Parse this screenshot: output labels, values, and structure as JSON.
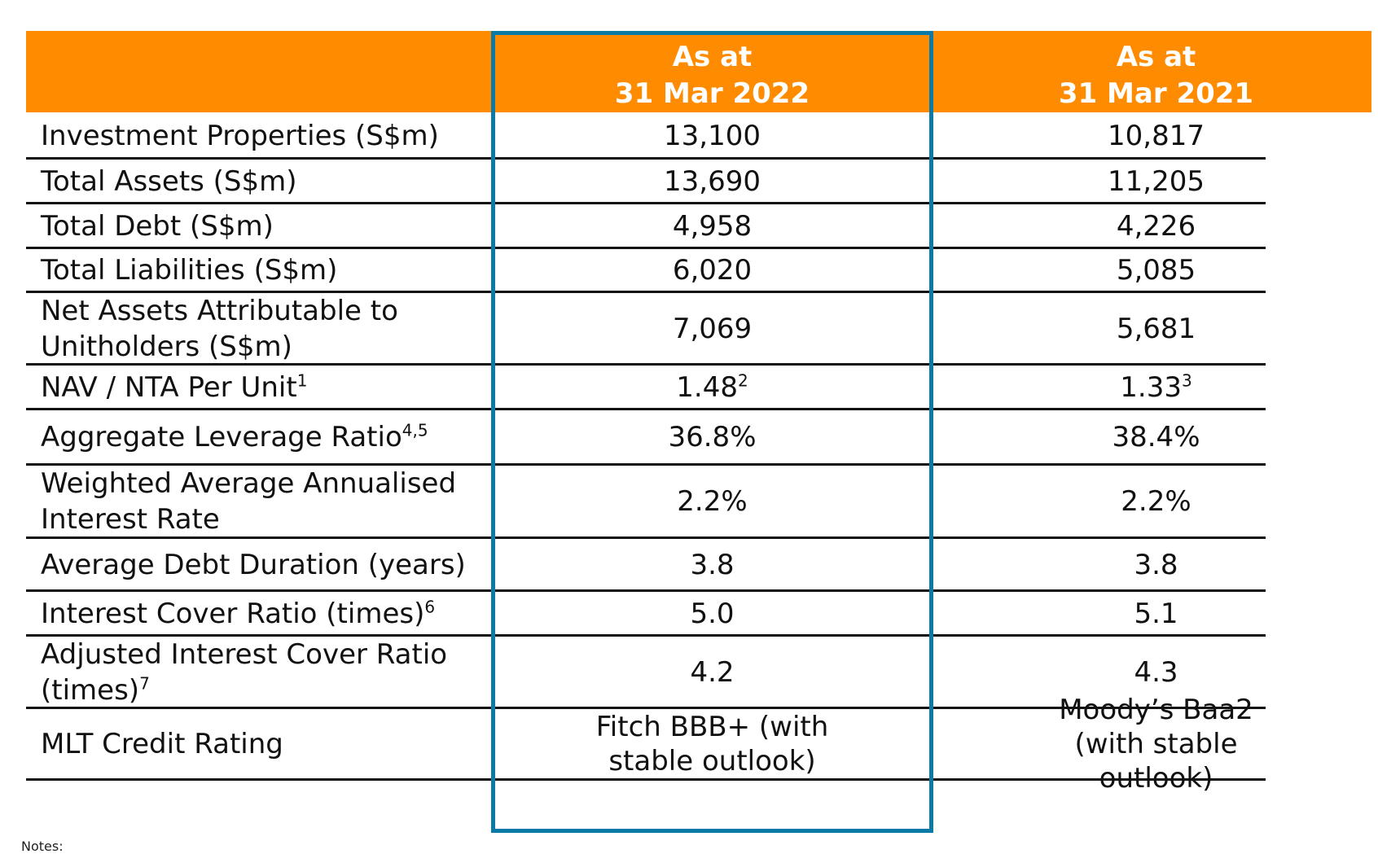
{
  "header": {
    "col1_line1": "As at",
    "col1_line2": "31 Mar 2022",
    "col2_line1": "As at",
    "col2_line2": "31 Mar 2021"
  },
  "rows": [
    {
      "label": "Investment Properties (S$m)",
      "label_sup": "",
      "v1": "13,100",
      "v1_sup": "",
      "v2": "10,817",
      "v2_sup": ""
    },
    {
      "label": "Total Assets (S$m)",
      "label_sup": "",
      "v1": "13,690",
      "v1_sup": "",
      "v2": "11,205",
      "v2_sup": ""
    },
    {
      "label": "Total Debt (S$m)",
      "label_sup": "",
      "v1": "4,958",
      "v1_sup": "",
      "v2": "4,226",
      "v2_sup": ""
    },
    {
      "label": "Total Liabilities (S$m)",
      "label_sup": "",
      "v1": "6,020",
      "v1_sup": "",
      "v2": "5,085",
      "v2_sup": ""
    },
    {
      "label": "Net Assets Attributable to Unitholders (S$m)",
      "label_sup": "",
      "v1": "7,069",
      "v1_sup": "",
      "v2": "5,681",
      "v2_sup": ""
    },
    {
      "label": "NAV / NTA Per Unit",
      "label_sup": "1",
      "v1": "1.48",
      "v1_sup": "2",
      "v2": "1.33",
      "v2_sup": "3"
    },
    {
      "label": "Aggregate Leverage Ratio",
      "label_sup": "4,5",
      "v1": "36.8%",
      "v1_sup": "",
      "v2": "38.4%",
      "v2_sup": ""
    },
    {
      "label": "Weighted Average Annualised Interest Rate",
      "label_sup": "",
      "v1": "2.2%",
      "v1_sup": "",
      "v2": "2.2%",
      "v2_sup": ""
    },
    {
      "label": "Average Debt Duration (years)",
      "label_sup": "",
      "v1": "3.8",
      "v1_sup": "",
      "v2": "3.8",
      "v2_sup": ""
    },
    {
      "label": "Interest Cover Ratio (times)",
      "label_sup": "6",
      "v1": "5.0",
      "v1_sup": "",
      "v2": "5.1",
      "v2_sup": ""
    },
    {
      "label": "Adjusted Interest Cover Ratio (times)",
      "label_sup": "7",
      "v1": "4.2",
      "v1_sup": "",
      "v2": "4.3",
      "v2_sup": ""
    },
    {
      "label": "MLT Credit Rating",
      "label_sup": "",
      "v1": "Fitch BBB+ (with stable outlook)",
      "v1_sup": "",
      "v2": "Moody’s Baa2 (with stable outlook)",
      "v2_sup": ""
    }
  ],
  "notes_label": "Notes:",
  "colors": {
    "header_bg": "#ff8c00",
    "header_text": "#ffffff",
    "highlight_border": "#0b7aa7",
    "rule": "#111111"
  }
}
